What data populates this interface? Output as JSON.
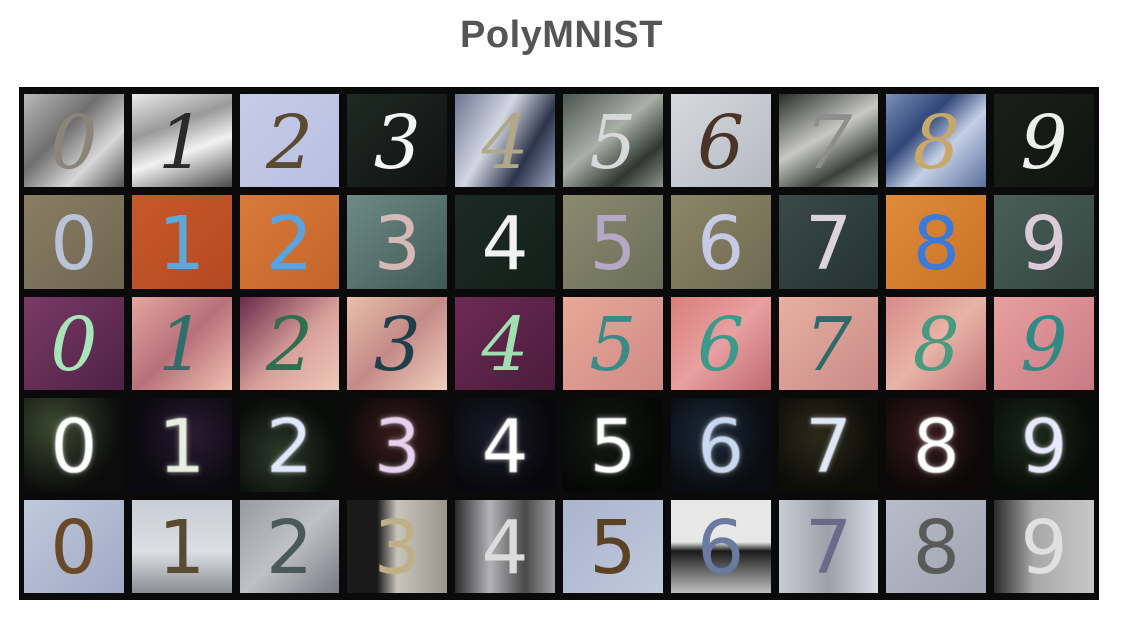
{
  "title": "PolyMNIST",
  "digits": [
    "0",
    "1",
    "2",
    "3",
    "4",
    "5",
    "6",
    "7",
    "8",
    "9"
  ],
  "modalities": [
    {
      "tiles": [
        {
          "bg": "linear-gradient(135deg,#b9b9b9,#6f6f6f 40%,#d8d8d8 70%,#555)",
          "fg": "#8a8479"
        },
        {
          "bg": "linear-gradient(160deg,#e9e9e9,#9a9a9a 35%,#f2f2f2 60%,#4a4a4a)",
          "fg": "#2a2a2a"
        },
        {
          "bg": "linear-gradient(135deg,#c7cbe6,#b8bfe2)",
          "fg": "#5a4a2e"
        },
        {
          "bg": "linear-gradient(135deg,#1e2a24,#111)",
          "fg": "#f5f5f5"
        },
        {
          "bg": "linear-gradient(120deg,#6c7590,#d3d7e3 40%,#2c344a 70%,#9aa3bc)",
          "fg": "#b1a889"
        },
        {
          "bg": "linear-gradient(140deg,#4c5450,#a9b0a8 45%,#2f3732 75%,#8a948c)",
          "fg": "#d8d8dc"
        },
        {
          "bg": "linear-gradient(135deg,#d6d9de,#b5b9c2)",
          "fg": "#4a3426"
        },
        {
          "bg": "linear-gradient(150deg,#2a2e2a,#c8c9c3 45%,#3b403b 75%,#bfc1bb)",
          "fg": "#8e8e8e"
        },
        {
          "bg": "linear-gradient(135deg,#7c8fb8,#2f4677 35%,#c5d0e6 60%,#5b6f9c)",
          "fg": "#c8a866"
        },
        {
          "bg": "linear-gradient(135deg,#1a1f18,#101410)",
          "fg": "#eeeeee"
        }
      ]
    },
    {
      "tiles": [
        {
          "bg": "linear-gradient(135deg,#8a7d64,#6f6550)",
          "fg": "#b9c3d8"
        },
        {
          "bg": "linear-gradient(135deg,#c8582b,#b34a22)",
          "fg": "#5ea8d8"
        },
        {
          "bg": "linear-gradient(135deg,#d97a3a,#c2652a)",
          "fg": "#5aa3e0"
        },
        {
          "bg": "linear-gradient(135deg,#6f8a85,#3f5a55)",
          "fg": "#d6b8b8"
        },
        {
          "bg": "linear-gradient(135deg,#1c2a26,#132019)",
          "fg": "#f2f2f2"
        },
        {
          "bg": "linear-gradient(135deg,#8a8a70,#6a6e58)",
          "fg": "#b5a8c4"
        },
        {
          "bg": "linear-gradient(135deg,#8c8668,#6e6a52)",
          "fg": "#c8c9e4"
        },
        {
          "bg": "linear-gradient(135deg,#3a4a48,#243331)",
          "fg": "#ddd4da"
        },
        {
          "bg": "linear-gradient(135deg,#e08a3a,#c87226)",
          "fg": "#3a7ad8"
        },
        {
          "bg": "linear-gradient(135deg,#4a5e58,#34463f)",
          "fg": "#dccbd6"
        }
      ]
    },
    {
      "tiles": [
        {
          "bg": "linear-gradient(135deg,#7a3a66,#4e2146)",
          "fg": "#a8e6b8"
        },
        {
          "bg": "linear-gradient(135deg,#e3a6a0,#b8707a 50%,#f0c0b0)",
          "fg": "#2f6f6a"
        },
        {
          "bg": "linear-gradient(135deg,#6a2a4a,#d8a09a 55%,#efc8b8)",
          "fg": "#2d6f4e"
        },
        {
          "bg": "linear-gradient(135deg,#e8c0a8,#c48a88 50%,#f0d0bc)",
          "fg": "#1f3f4a"
        },
        {
          "bg": "linear-gradient(135deg,#6e2a55,#4a1c3c)",
          "fg": "#9fe0b0"
        },
        {
          "bg": "linear-gradient(135deg,#e8a898,#d08a86)",
          "fg": "#3a8a86"
        },
        {
          "bg": "linear-gradient(135deg,#d8807a,#e8a0a0 50%,#c06a70)",
          "fg": "#3a9a8c"
        },
        {
          "bg": "linear-gradient(135deg,#e8b0a0,#c88a88)",
          "fg": "#2f6a6a"
        },
        {
          "bg": "linear-gradient(135deg,#d88a8a,#e8b4a8 50%,#c07478)",
          "fg": "#4a9a80"
        },
        {
          "bg": "linear-gradient(135deg,#e8a0a0,#c87a84)",
          "fg": "#2f8a86"
        }
      ]
    },
    {
      "tiles": [
        {
          "bg": "radial-gradient(circle at 30% 30%,#3a4a30,#0c0c0c 70%)",
          "fg": "#ffffff"
        },
        {
          "bg": "radial-gradient(circle at 60% 40%,#2a1a30,#0a0a10 70%)",
          "fg": "#e8f0e0"
        },
        {
          "bg": "radial-gradient(circle at 40% 60%,#2a3a2a,#0a0c0a 70%)",
          "fg": "#e0e8ff"
        },
        {
          "bg": "radial-gradient(circle at 50% 40%,#3a1a1a,#0c0a0a 70%)",
          "fg": "#e8d0f0"
        },
        {
          "bg": "radial-gradient(circle at 40% 40%,#1a1a2a,#08080c 70%)",
          "fg": "#ffffff"
        },
        {
          "bg": "radial-gradient(circle at 40% 40%,#141a14,#060806 70%)",
          "fg": "#ffffff"
        },
        {
          "bg": "radial-gradient(circle at 40% 40%,#1a2a3a,#0a0c10 70%)",
          "fg": "#c8d8f0"
        },
        {
          "bg": "radial-gradient(circle at 40% 40%,#2a2a1a,#0c0c08 70%)",
          "fg": "#e0e8f8"
        },
        {
          "bg": "radial-gradient(circle at 40% 40%,#3a1a1a,#0c0808 70%)",
          "fg": "#ffffff"
        },
        {
          "bg": "radial-gradient(circle at 40% 40%,#1a2a1a,#080c08 70%)",
          "fg": "#e8e8ff"
        }
      ]
    },
    {
      "tiles": [
        {
          "bg": "linear-gradient(135deg,#c0c8dc,#a0aac4)",
          "fg": "#6a4a26"
        },
        {
          "bg": "linear-gradient(180deg,#c8ccd4,#dcdfe4 55%,#8a8e94)",
          "fg": "#5a4a30"
        },
        {
          "bg": "linear-gradient(135deg,#9a9aa2,#c0c0c8 50%,#7a7a84)",
          "fg": "#4a5a5a"
        },
        {
          "bg": "linear-gradient(90deg,#1a1a1a 30%,#c8c4bc 50%,#9a968e)",
          "fg": "#c0b088"
        },
        {
          "bg": "linear-gradient(90deg,#2a2a2a,#b4b4b8 35%,#4a4a4a 70%,#a0a0a4)",
          "fg": "#dcdcdc"
        },
        {
          "bg": "linear-gradient(135deg,#aab4cc,#c0c8dc)",
          "fg": "#5a4224"
        },
        {
          "bg": "linear-gradient(180deg,#e8e8e8 45%,#1a1a1a 55%,#c0c0c0)",
          "fg": "#6a7aa0"
        },
        {
          "bg": "linear-gradient(90deg,#c8ccd4,#9ca0a8 50%,#d8dce4)",
          "fg": "#6a6a8a"
        },
        {
          "bg": "linear-gradient(135deg,#b8bcc8,#a0a4b0)",
          "fg": "#5a5a5a"
        },
        {
          "bg": "linear-gradient(90deg,#2a2a2a,#a8a8a8 40%,#c8c8c8)",
          "fg": "#e0e0e0"
        }
      ]
    }
  ]
}
